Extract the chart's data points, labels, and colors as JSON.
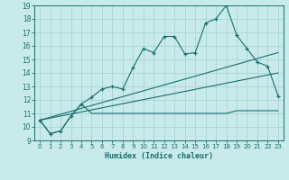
{
  "title": "",
  "xlabel": "Humidex (Indice chaleur)",
  "bg_color": "#c8eaea",
  "grid_color": "#aad4d4",
  "line_color": "#1a6e6e",
  "x_data": [
    0,
    1,
    2,
    3,
    4,
    5,
    6,
    7,
    8,
    9,
    10,
    11,
    12,
    13,
    14,
    15,
    16,
    17,
    18,
    19,
    20,
    21,
    22,
    23
  ],
  "series1": [
    10.5,
    9.5,
    9.7,
    10.8,
    11.7,
    12.2,
    12.8,
    13.0,
    12.8,
    14.4,
    15.8,
    15.5,
    16.7,
    16.7,
    15.4,
    15.5,
    17.7,
    18.0,
    19.0,
    16.8,
    15.8,
    14.8,
    14.5,
    12.3
  ],
  "series2": [
    10.5,
    9.5,
    9.7,
    10.8,
    11.7,
    11.0,
    11.0,
    11.0,
    11.0,
    11.0,
    11.0,
    11.0,
    11.0,
    11.0,
    11.0,
    11.0,
    11.0,
    11.0,
    11.0,
    11.2,
    11.2,
    11.2,
    11.2,
    11.2
  ],
  "series3_x": [
    0,
    23
  ],
  "series3_y": [
    10.5,
    14.0
  ],
  "series4_x": [
    0,
    23
  ],
  "series4_y": [
    10.5,
    15.5
  ],
  "ylim": [
    9,
    19
  ],
  "xlim": [
    -0.5,
    23.5
  ],
  "yticks": [
    9,
    10,
    11,
    12,
    13,
    14,
    15,
    16,
    17,
    18,
    19
  ],
  "xticks": [
    0,
    1,
    2,
    3,
    4,
    5,
    6,
    7,
    8,
    9,
    10,
    11,
    12,
    13,
    14,
    15,
    16,
    17,
    18,
    19,
    20,
    21,
    22,
    23
  ]
}
